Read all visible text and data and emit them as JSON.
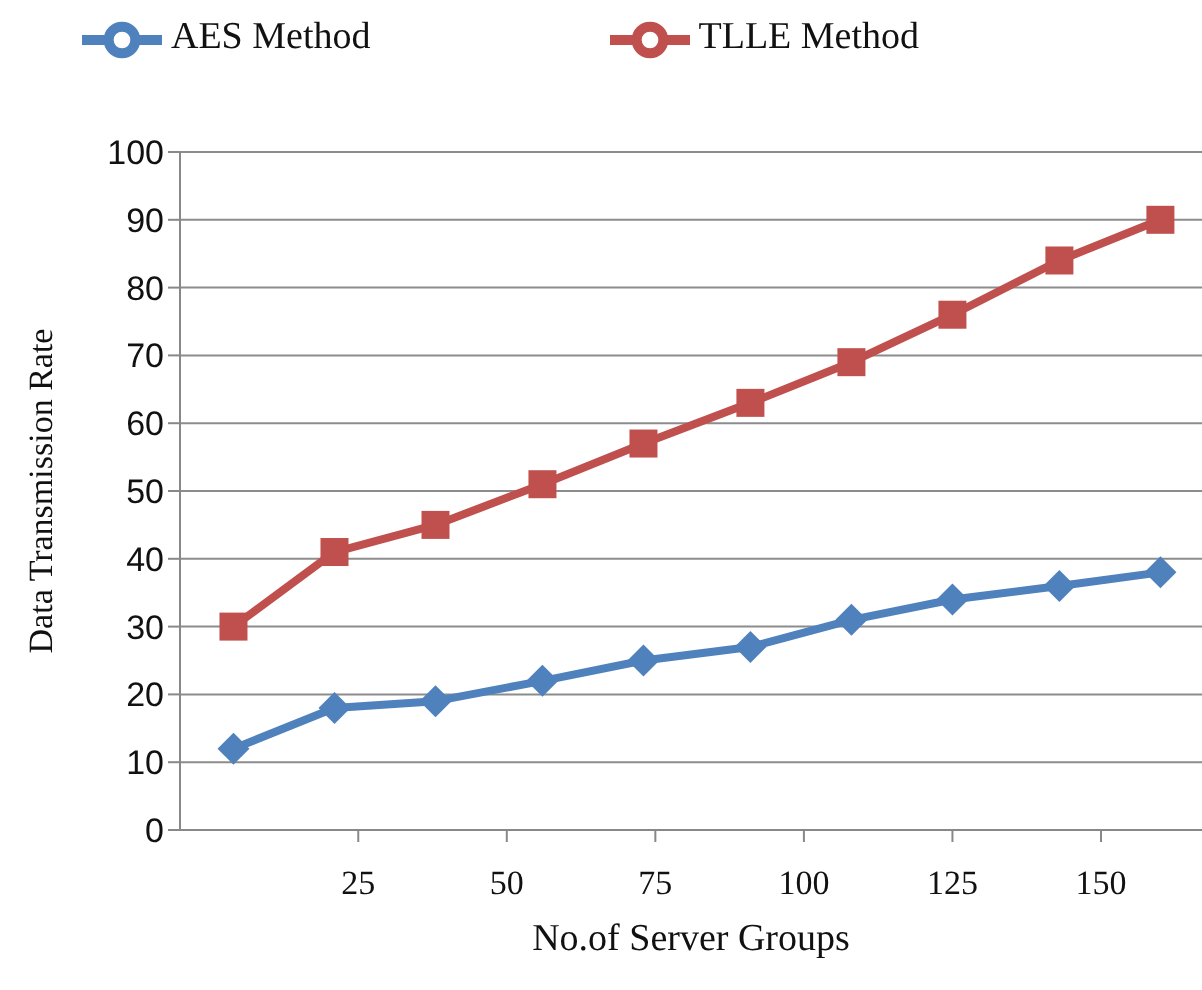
{
  "chart_data": {
    "type": "line",
    "xlabel": "No.of Server Groups",
    "ylabel": "Data Transmission  Rate",
    "x": [
      4,
      21,
      38,
      56,
      73,
      91,
      108,
      125,
      143,
      160
    ],
    "xlim": [
      -5,
      167
    ],
    "xticks": [
      25,
      50,
      75,
      100,
      125,
      150
    ],
    "ylim": [
      0,
      100
    ],
    "yticks": [
      0,
      10,
      20,
      30,
      40,
      50,
      60,
      70,
      80,
      90,
      100
    ],
    "grid": "y",
    "legend": "top",
    "line_style": "solid",
    "series": [
      {
        "name": "TLLE Method",
        "color": "#c0504d",
        "marker": "square",
        "values": [
          30,
          41,
          45,
          51,
          57,
          63,
          69,
          76,
          84,
          90
        ]
      },
      {
        "name": "AES Method",
        "color": "#4f81bd",
        "marker": "diamond",
        "values": [
          12,
          18,
          19,
          22,
          25,
          27,
          31,
          34,
          36,
          38
        ]
      }
    ]
  }
}
